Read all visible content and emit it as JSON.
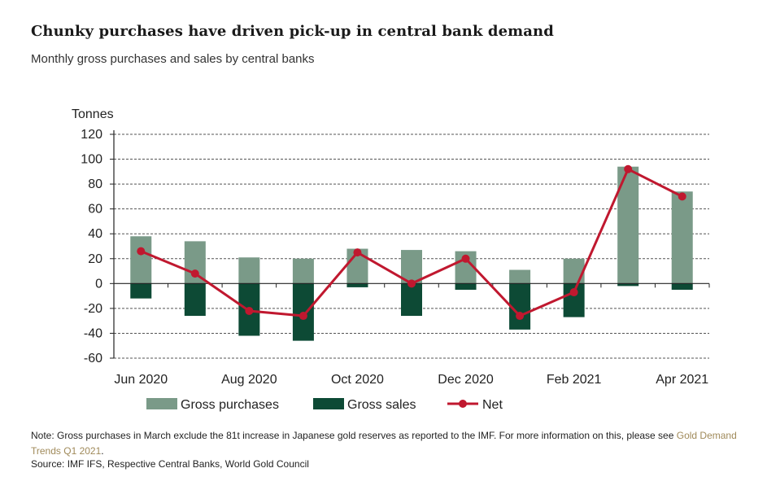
{
  "title": "Chunky purchases have driven pick-up in central bank demand",
  "subtitle": "Monthly gross purchases and sales by central banks",
  "note": {
    "text": "Note: Gross purchases in March exclude the 81t increase in Japanese gold reserves as reported to the IMF. For more information on this, please see ",
    "link": "Gold Demand Trends Q1 2021",
    "end": "."
  },
  "source": "Source: IMF IFS, Respective Central Banks, World Gold Council",
  "colors": {
    "purchases": "#7a9a88",
    "sales": "#0d4a35",
    "net": "#c0182f"
  },
  "chart_data": {
    "type": "bar",
    "categories": [
      "Jun 2020",
      "Jul 2020",
      "Aug 2020",
      "Sep 2020",
      "Oct 2020",
      "Nov 2020",
      "Dec 2020",
      "Jan 2021",
      "Feb 2021",
      "Mar 2021",
      "Apr 2021"
    ],
    "x_tick_labels": [
      "Jun 2020",
      "",
      "Aug 2020",
      "",
      "Oct 2020",
      "",
      "Dec 2020",
      "",
      "Feb 2021",
      "",
      "Apr 2021"
    ],
    "series": [
      {
        "name": "Gross purchases",
        "type": "bar",
        "values": [
          38,
          34,
          21,
          20,
          28,
          27,
          26,
          11,
          20,
          94,
          74
        ]
      },
      {
        "name": "Gross sales",
        "type": "bar",
        "values": [
          -12,
          -26,
          -42,
          -46,
          -3,
          -26,
          -5,
          -37,
          -27,
          -2,
          -5
        ]
      },
      {
        "name": "Net",
        "type": "line",
        "values": [
          26,
          8,
          -22,
          -26,
          25,
          0,
          20,
          -26,
          -7,
          92,
          70
        ]
      }
    ],
    "ylabel": "Tonnes",
    "ylim": [
      -60,
      120
    ],
    "yticks": [
      120,
      100,
      80,
      60,
      40,
      20,
      0,
      -20,
      -40,
      -60
    ],
    "grid": true,
    "legend_position": "bottom"
  }
}
